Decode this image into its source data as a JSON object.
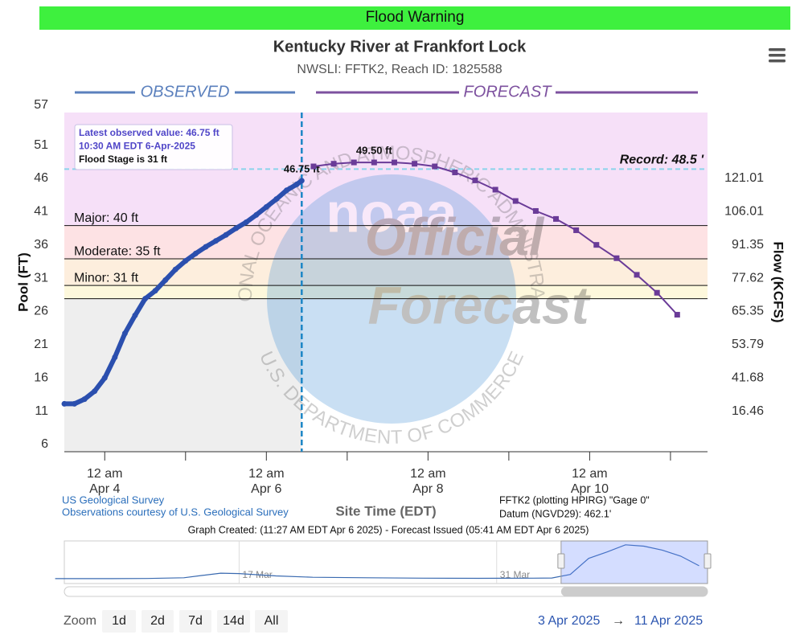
{
  "banner": "Flood Warning",
  "chart_data": {
    "type": "line",
    "title": "Kentucky River at Frankfort Lock",
    "subtitle": "NWSLI: FFTK2, Reach ID: 1825588",
    "y_label": "Pool (FT)",
    "y2_label": "Flow (KCFS)",
    "x_label": "Site Time (EDT)",
    "xlim": [
      "2025-04-03T12:00",
      "2025-04-11T11:00"
    ],
    "xticks": [
      {
        "value": "2025-04-04T00:00",
        "label": [
          "12 am",
          "Apr 4"
        ]
      },
      {
        "value": "2025-04-06T00:00",
        "label": [
          "12 am",
          "Apr 6"
        ]
      },
      {
        "value": "2025-04-08T00:00",
        "label": [
          "12 am",
          "Apr 8"
        ]
      },
      {
        "value": "2025-04-10T00:00",
        "label": [
          "12 am",
          "Apr 10"
        ]
      }
    ],
    "xminorticks": [
      "2025-04-05T00:00",
      "2025-04-07T00:00",
      "2025-04-09T00:00",
      "2025-04-11T00:00"
    ],
    "ylim": [
      6,
      57
    ],
    "yticks": [
      6,
      11,
      16,
      21,
      26,
      31,
      36,
      41,
      46,
      51,
      57
    ],
    "y2ticks": [
      16.46,
      41.68,
      53.79,
      65.35,
      77.62,
      91.35,
      106.01,
      121.01
    ],
    "y2_stage": [
      11,
      16,
      21,
      26,
      31,
      36,
      41,
      46
    ],
    "grid": false,
    "stages": [
      {
        "label": "Major: 40 ft",
        "value": 40,
        "color": "#f6e0f8"
      },
      {
        "label": "Moderate: 35 ft",
        "value": 35,
        "color": "#fde2e4"
      },
      {
        "label": "Minor: 31 ft",
        "value": 31,
        "color": "#fdeedd"
      },
      {
        "label": null,
        "value": 29,
        "color": "#fdf8dc"
      }
    ],
    "record": {
      "label": "Record: 48.5 '",
      "value": 48.5,
      "color": "#8ad3ea"
    },
    "observed_shade": "#eeeeee",
    "series": [
      {
        "name": "OBSERVED",
        "color": "#2b4fae",
        "legend_color": "#5b80bd",
        "x": [
          "2025-04-03T12:00",
          "2025-04-03T15:00",
          "2025-04-03T18:00",
          "2025-04-03T21:00",
          "2025-04-04T00:00",
          "2025-04-04T03:00",
          "2025-04-04T06:00",
          "2025-04-04T09:00",
          "2025-04-04T12:00",
          "2025-04-04T15:00",
          "2025-04-04T18:00",
          "2025-04-04T21:00",
          "2025-04-05T00:00",
          "2025-04-05T03:00",
          "2025-04-05T06:00",
          "2025-04-05T09:00",
          "2025-04-05T12:00",
          "2025-04-05T15:00",
          "2025-04-05T18:00",
          "2025-04-05T21:00",
          "2025-04-06T00:00",
          "2025-04-06T03:00",
          "2025-04-06T06:00",
          "2025-04-06T09:00",
          "2025-04-06T10:30"
        ],
        "values": [
          13.2,
          13.2,
          13.9,
          15.1,
          17.1,
          20.2,
          23.8,
          26.5,
          29.0,
          30.2,
          31.8,
          33.4,
          34.7,
          35.8,
          36.8,
          37.7,
          38.6,
          39.6,
          40.5,
          41.6,
          42.8,
          44.0,
          45.3,
          46.2,
          46.75
        ],
        "value_labels": [
          null,
          null,
          null,
          null,
          null,
          null,
          null,
          null,
          null,
          null,
          null,
          null,
          null,
          null,
          null,
          null,
          null,
          null,
          null,
          null,
          null,
          null,
          null,
          null,
          "46.75 ft"
        ]
      },
      {
        "name": "FORECAST",
        "color": "#6a3b98",
        "legend_color": "#7d519f",
        "x": [
          "2025-04-06T14:00",
          "2025-04-06T20:00",
          "2025-04-07T02:00",
          "2025-04-07T08:00",
          "2025-04-07T14:00",
          "2025-04-07T20:00",
          "2025-04-08T02:00",
          "2025-04-08T08:00",
          "2025-04-08T14:00",
          "2025-04-08T20:00",
          "2025-04-09T02:00",
          "2025-04-09T08:00",
          "2025-04-09T14:00",
          "2025-04-09T20:00",
          "2025-04-10T02:00",
          "2025-04-10T08:00",
          "2025-04-10T14:00",
          "2025-04-10T20:00",
          "2025-04-11T02:00"
        ],
        "values": [
          48.9,
          49.3,
          49.5,
          49.5,
          49.5,
          49.3,
          48.9,
          48.0,
          46.8,
          45.4,
          43.7,
          42.2,
          41.0,
          39.3,
          37.1,
          35.1,
          32.6,
          29.9,
          26.6
        ],
        "value_labels": [
          null,
          null,
          null,
          "49.50 ft",
          null,
          null,
          null,
          null,
          null,
          null,
          null,
          null,
          null,
          null,
          null,
          null,
          null,
          null,
          null
        ]
      }
    ],
    "tooltip": [
      "Latest observed value: 46.75 ft",
      "10:30 AM EDT 6-Apr-2025",
      "Flood Stage is 31 ft"
    ],
    "watermark": {
      "logo": "noaa",
      "lines": [
        "Official",
        "Forecast"
      ],
      "ring_top": "NATIONAL OCEANIC AND ATMOSPHERIC ADMINISTRATION",
      "ring_bottom": "U.S. DEPARTMENT OF COMMERCE"
    },
    "credits": [
      "US Geological Survey",
      "Observations courtesy of U.S. Geological Survey"
    ],
    "notes": [
      "FFTK2 (plotting HPIRG) \"Gage 0\"",
      "Datum (NGVD29): 462.1'"
    ],
    "created": "Graph Created: (11:27 AM EDT Apr 6 2025) - Forecast Issued (05:41 AM EDT Apr 6 2025)",
    "navigator": {
      "xlim": [
        "2025-03-07T12:00",
        "2025-04-11T11:00"
      ],
      "ylim": [
        8,
        52
      ],
      "xticks": [
        {
          "value": "2025-03-17",
          "label": "17 Mar"
        },
        {
          "value": "2025-03-31",
          "label": "31 Mar"
        }
      ],
      "x": [
        "2025-03-07",
        "2025-03-10",
        "2025-03-12",
        "2025-03-14",
        "2025-03-15",
        "2025-03-16",
        "2025-03-17",
        "2025-03-19",
        "2025-03-21",
        "2025-03-24",
        "2025-03-27",
        "2025-03-30",
        "2025-04-02",
        "2025-04-03",
        "2025-04-04",
        "2025-04-05",
        "2025-04-06",
        "2025-04-07",
        "2025-04-08",
        "2025-04-09",
        "2025-04-10",
        "2025-04-11"
      ],
      "values": [
        12.5,
        12.5,
        12.7,
        13.5,
        16.0,
        18.5,
        18.0,
        15.5,
        14.0,
        13.5,
        13.0,
        12.8,
        13.0,
        13.2,
        17.1,
        34.7,
        41.7,
        49.5,
        48.0,
        43.7,
        37.1,
        26.6
      ]
    }
  },
  "zoom": {
    "label": "Zoom",
    "buttons": [
      "1d",
      "2d",
      "7d",
      "14d",
      "All"
    ]
  },
  "range": {
    "from": "3 Apr 2025",
    "arrow": "→",
    "to": "11 Apr 2025"
  }
}
